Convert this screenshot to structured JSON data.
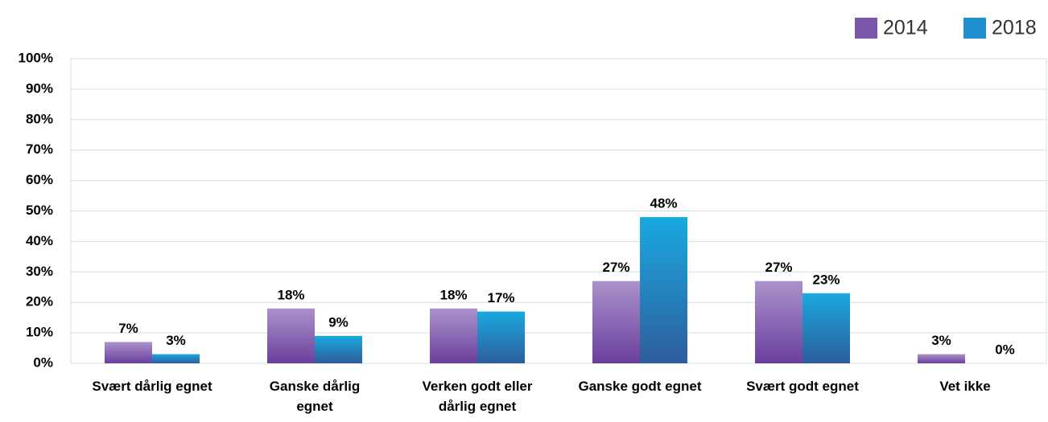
{
  "chart_data": {
    "type": "bar",
    "categories": [
      "Svært dårlig egnet",
      "Ganske dårlig\negnet",
      "Verken godt eller\ndårlig egnet",
      "Ganske godt egnet",
      "Svært godt egnet",
      "Vet ikke"
    ],
    "series": [
      {
        "name": "2014",
        "color": "#7a55a8",
        "values": [
          7,
          18,
          18,
          27,
          27,
          3
        ],
        "value_labels": [
          "7%",
          "18%",
          "18%",
          "27%",
          "27%",
          "3%"
        ]
      },
      {
        "name": "2018",
        "color": "#1f8fd0",
        "values": [
          3,
          9,
          17,
          48,
          23,
          0
        ],
        "value_labels": [
          "3%",
          "9%",
          "17%",
          "48%",
          "23%",
          "0%"
        ]
      }
    ],
    "ylim": [
      0,
      100
    ],
    "yticks": [
      {
        "value": 0,
        "label": "0%"
      },
      {
        "value": 10,
        "label": "10%"
      },
      {
        "value": 20,
        "label": "20%"
      },
      {
        "value": 30,
        "label": "30%"
      },
      {
        "value": 40,
        "label": "40%"
      },
      {
        "value": 50,
        "label": "50%"
      },
      {
        "value": 60,
        "label": "60%"
      },
      {
        "value": 70,
        "label": "70%"
      },
      {
        "value": 80,
        "label": "80%"
      },
      {
        "value": 90,
        "label": "90%"
      },
      {
        "value": 100,
        "label": "100%"
      }
    ],
    "grid": true,
    "legend": "top-right"
  }
}
